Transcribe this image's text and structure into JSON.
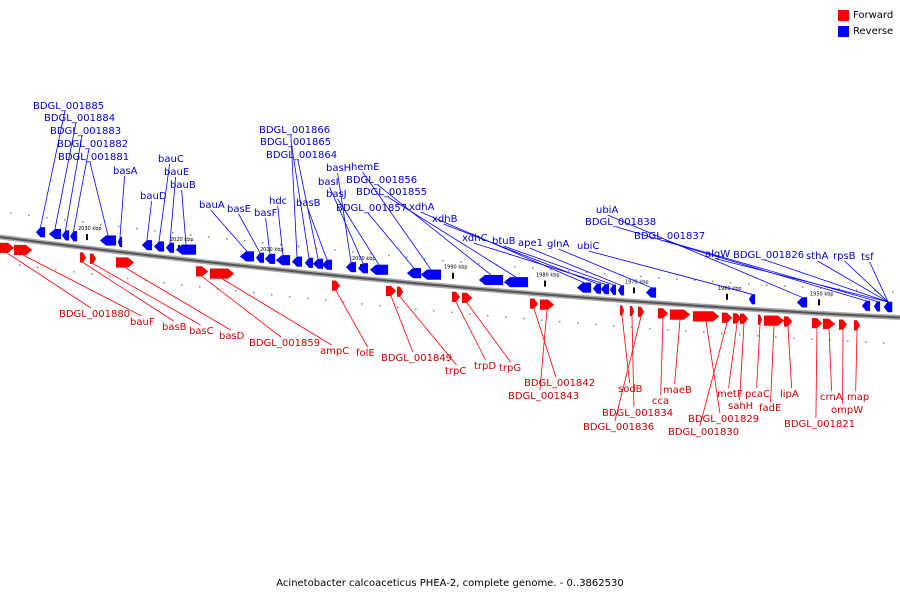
{
  "legend": {
    "items": [
      {
        "label": "Forward",
        "color": "#ff0000"
      },
      {
        "label": "Reverse",
        "color": "#0000ff"
      }
    ]
  },
  "caption": "Acinetobacter calcoaceticus PHEA-2, complete genome. - 0..3862530",
  "colors": {
    "forward": "#ff0000",
    "reverse": "#0000ff",
    "label_forward": "#cc0000",
    "label_reverse": "#0000cc",
    "axis": "#888888"
  },
  "scale_labels": [
    "2030 kbp",
    "2020 kbp",
    "2010 kbp",
    "2000 kbp",
    "1990 kbp",
    "1980 kbp",
    "1970 kbp",
    "1960 kbp",
    "1950 kbp"
  ],
  "genes_reverse": [
    "BDGL_001885",
    "BDGL_001884",
    "BDGL_001883",
    "BDGL_001882",
    "BDGL_001881",
    "basA",
    "bauD",
    "bauC",
    "bauE",
    "bauB",
    "bauA",
    "basE",
    "basF",
    "hdc",
    "BDGL_001866",
    "BDGL_001865",
    "BDGL_001864",
    "basB",
    "basH",
    "basI",
    "basJ",
    "BDGL_001857",
    "hemE",
    "BDGL_001856",
    "BDGL_001855",
    "xdhA",
    "xdhB",
    "xdhC",
    "btuB",
    "ape1",
    "glnA",
    "ubiC",
    "ubiA",
    "BDGL_001838",
    "BDGL_001837",
    "algW",
    "BDGL_001826",
    "sthA",
    "rpsB",
    "tsf"
  ],
  "genes_forward": [
    "BDGL_001880",
    "bauF",
    "basB",
    "basC",
    "basD",
    "BDGL_001859",
    "ampC",
    "folE",
    "BDGL_001849",
    "trpC",
    "trpD",
    "trpG",
    "BDGL_001842",
    "BDGL_001843",
    "sodB",
    "BDGL_001834",
    "BDGL_001836",
    "cca",
    "maeB",
    "BDGL_001829",
    "BDGL_001830",
    "metF",
    "sahH",
    "pcaC",
    "fadE",
    "lipA",
    "BDGL_001821",
    "crnA",
    "ompW",
    "map"
  ]
}
